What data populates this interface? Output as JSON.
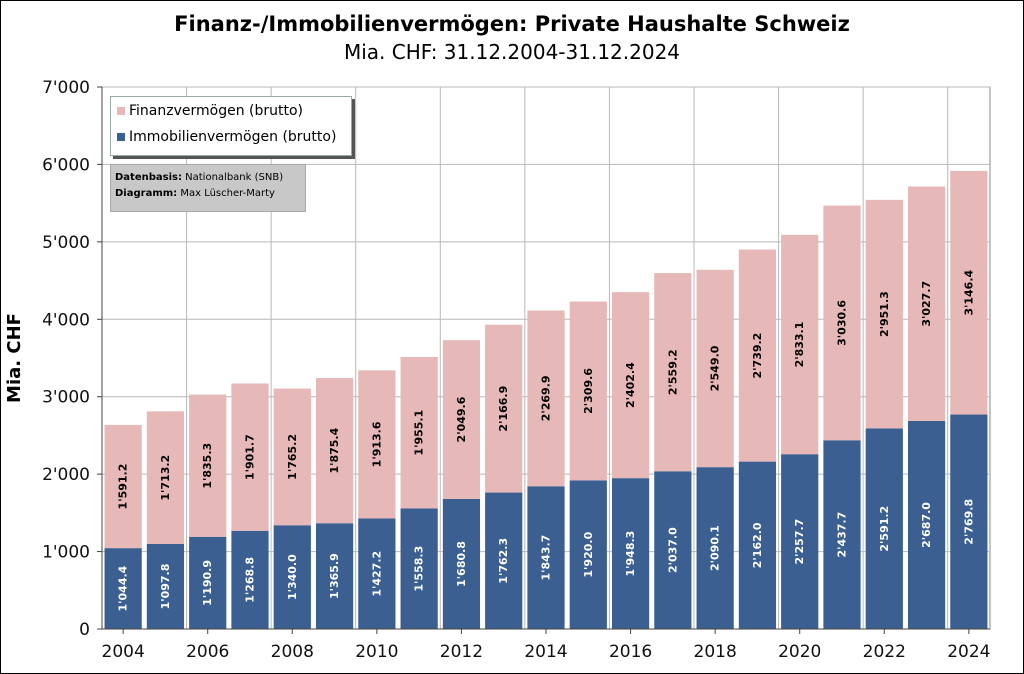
{
  "chart_data": {
    "type": "bar",
    "stacked": true,
    "title": "Finanz-/Immobilienvermögen: Private Haushalte Schweiz",
    "subtitle": "Mia. CHF: 31.12.2004-31.12.2024",
    "ylabel": "Mia. CHF",
    "xlabel": "",
    "ylim": [
      0,
      7000
    ],
    "yticks": [
      "0",
      "1'000",
      "2'000",
      "3'000",
      "4'000",
      "5'000",
      "6'000",
      "7'000"
    ],
    "xtick_labels": [
      "2004",
      "2006",
      "2008",
      "2010",
      "2012",
      "2014",
      "2016",
      "2018",
      "2020",
      "2022",
      "2024"
    ],
    "categories": [
      "2004",
      "2005",
      "2006",
      "2007",
      "2008",
      "2009",
      "2010",
      "2011",
      "2012",
      "2013",
      "2014",
      "2015",
      "2016",
      "2017",
      "2018",
      "2019",
      "2020",
      "2021",
      "2022",
      "2023",
      "2024"
    ],
    "grid": true,
    "legend_position": "top-left",
    "series": [
      {
        "name": "Immobilienvermögen (brutto)",
        "color": "#3b5f91",
        "label_color": "#ffffff",
        "values": [
          1044.4,
          1097.8,
          1190.9,
          1268.8,
          1340.0,
          1365.9,
          1427.2,
          1558.3,
          1680.8,
          1762.3,
          1843.7,
          1920.0,
          1948.3,
          2037.0,
          2090.1,
          2162.0,
          2257.7,
          2437.7,
          2591.2,
          2687.0,
          2769.8
        ],
        "labels": [
          "1'044.4",
          "1'097.8",
          "1'190.9",
          "1'268.8",
          "1'340.0",
          "1'365.9",
          "1'427.2",
          "1'558.3",
          "1'680.8",
          "1'762.3",
          "1'843.7",
          "1'920.0",
          "1'948.3",
          "2'037.0",
          "2'090.1",
          "2'162.0",
          "2'257.7",
          "2'437.7",
          "2'591.2",
          "2'687.0",
          "2'769.8"
        ]
      },
      {
        "name": "Finanzvermögen (brutto)",
        "color": "#e6b8b8",
        "label_color": "#000000",
        "values": [
          1591.2,
          1713.2,
          1835.3,
          1901.7,
          1765.2,
          1875.4,
          1913.6,
          1955.1,
          2049.6,
          2166.9,
          2269.9,
          2309.6,
          2402.4,
          2559.2,
          2549.0,
          2739.2,
          2833.1,
          3030.6,
          2951.3,
          3027.7,
          3146.4
        ],
        "labels": [
          "1'591.2",
          "1'713.2",
          "1'835.3",
          "1'901.7",
          "1'765.2",
          "1'875.4",
          "1'913.6",
          "1'955.1",
          "2'049.6",
          "2'166.9",
          "2'269.9",
          "2'309.6",
          "2'402.4",
          "2'559.2",
          "2'549.0",
          "2'739.2",
          "2'833.1",
          "3'030.6",
          "2'951.3",
          "3'027.7",
          "3'146.4"
        ]
      }
    ]
  },
  "legend": {
    "items": [
      "Finanzvermögen (brutto)",
      "Immobilienvermögen (brutto)"
    ],
    "colors": [
      "#e6b8b8",
      "#3b5f91"
    ]
  },
  "sources": {
    "data_label": "Datenbasis:",
    "data_value": "Nationalbank (SNB)",
    "chart_label": "Diagramm:",
    "chart_value": "Max Lüscher-Marty"
  }
}
